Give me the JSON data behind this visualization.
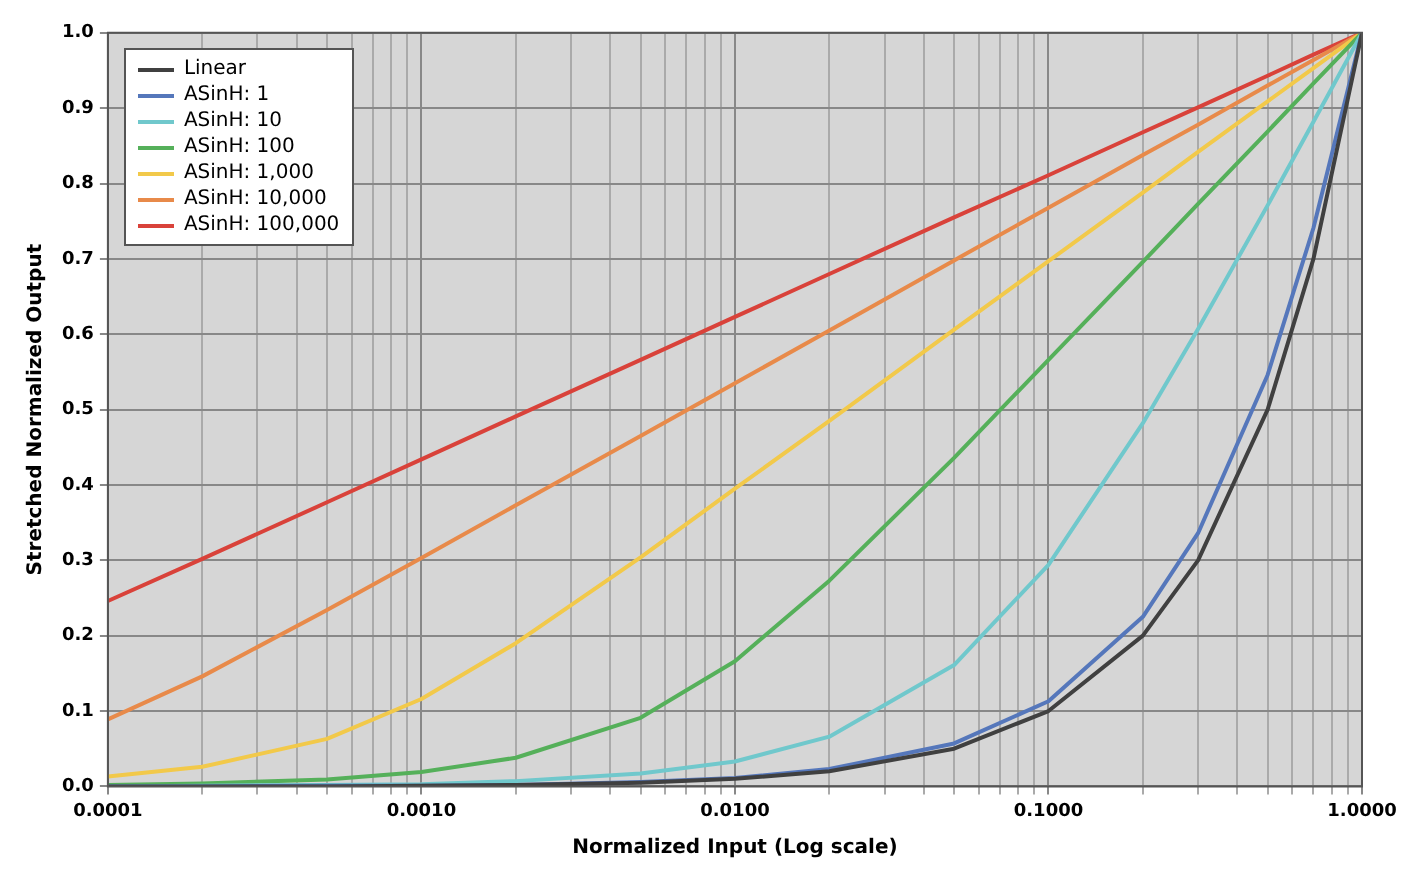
{
  "chart_data": {
    "type": "line",
    "xlabel": "Normalized Input (Log scale)",
    "ylabel": "Stretched Normalized Output",
    "log": "x",
    "grid": true,
    "legend": "top left",
    "marker": "none",
    "line_style": "solid",
    "x": [
      0.0001,
      0.0002,
      0.0005,
      0.001,
      0.002,
      0.005,
      0.01,
      0.02,
      0.05,
      0.1,
      0.2,
      0.3,
      0.5,
      0.7,
      1
    ],
    "xlim": [
      0.0001,
      1
    ],
    "ylim": [
      0,
      1
    ],
    "xticks": [
      {
        "value": 0.0001,
        "label": "0.0001"
      },
      {
        "value": 0.0002,
        "label": null
      },
      {
        "value": 0.0003,
        "label": null
      },
      {
        "value": 0.0004,
        "label": null
      },
      {
        "value": 0.0005,
        "label": null
      },
      {
        "value": 0.0006,
        "label": null
      },
      {
        "value": 0.0007,
        "label": null
      },
      {
        "value": 0.0008,
        "label": null
      },
      {
        "value": 0.0009,
        "label": null
      },
      {
        "value": 0.001,
        "label": "0.0010"
      },
      {
        "value": 0.002,
        "label": null
      },
      {
        "value": 0.003,
        "label": null
      },
      {
        "value": 0.004,
        "label": null
      },
      {
        "value": 0.005,
        "label": null
      },
      {
        "value": 0.006,
        "label": null
      },
      {
        "value": 0.007,
        "label": null
      },
      {
        "value": 0.008,
        "label": null
      },
      {
        "value": 0.009,
        "label": null
      },
      {
        "value": 0.01,
        "label": "0.0100"
      },
      {
        "value": 0.02,
        "label": null
      },
      {
        "value": 0.03,
        "label": null
      },
      {
        "value": 0.04,
        "label": null
      },
      {
        "value": 0.05,
        "label": null
      },
      {
        "value": 0.06,
        "label": null
      },
      {
        "value": 0.07,
        "label": null
      },
      {
        "value": 0.08,
        "label": null
      },
      {
        "value": 0.09,
        "label": null
      },
      {
        "value": 0.1,
        "label": "0.1000"
      },
      {
        "value": 0.2,
        "label": null
      },
      {
        "value": 0.3,
        "label": null
      },
      {
        "value": 0.4,
        "label": null
      },
      {
        "value": 0.5,
        "label": null
      },
      {
        "value": 0.6,
        "label": null
      },
      {
        "value": 0.7,
        "label": null
      },
      {
        "value": 0.8,
        "label": null
      },
      {
        "value": 0.9,
        "label": null
      },
      {
        "value": 1,
        "label": "1.0000"
      }
    ],
    "yticks": [
      {
        "value": 0,
        "label": "0.0"
      },
      {
        "value": 0.1,
        "label": "0.1"
      },
      {
        "value": 0.2,
        "label": "0.2"
      },
      {
        "value": 0.3,
        "label": "0.3"
      },
      {
        "value": 0.4,
        "label": "0.4"
      },
      {
        "value": 0.5,
        "label": "0.5"
      },
      {
        "value": 0.6,
        "label": "0.6"
      },
      {
        "value": 0.7,
        "label": "0.7"
      },
      {
        "value": 0.8,
        "label": "0.8"
      },
      {
        "value": 0.9,
        "label": "0.9"
      },
      {
        "value": 1,
        "label": "1.0"
      }
    ],
    "series": [
      {
        "name": "Linear",
        "color": "#404040",
        "values": [
          0,
          0,
          0,
          0.001,
          0.002,
          0.005,
          0.01,
          0.02,
          0.05,
          0.1,
          0.2,
          0.3,
          0.5,
          0.7,
          1
        ]
      },
      {
        "name": "ASinH: 1",
        "color": "#5577bb",
        "values": [
          0,
          0,
          0.001,
          0.001,
          0.002,
          0.006,
          0.011,
          0.023,
          0.057,
          0.113,
          0.225,
          0.336,
          0.546,
          0.741,
          1
        ]
      },
      {
        "name": "ASinH: 10",
        "color": "#70c8cc",
        "values": [
          0,
          0.001,
          0.002,
          0.003,
          0.007,
          0.017,
          0.033,
          0.066,
          0.161,
          0.294,
          0.482,
          0.607,
          0.771,
          0.882,
          1
        ]
      },
      {
        "name": "ASinH: 100",
        "color": "#55b05a",
        "values": [
          0.002,
          0.004,
          0.009,
          0.019,
          0.038,
          0.091,
          0.166,
          0.273,
          0.436,
          0.566,
          0.696,
          0.773,
          0.869,
          0.933,
          1
        ]
      },
      {
        "name": "ASinH: 1,000",
        "color": "#f2c94a",
        "values": [
          0.013,
          0.026,
          0.063,
          0.116,
          0.19,
          0.304,
          0.395,
          0.485,
          0.606,
          0.697,
          0.788,
          0.842,
          0.909,
          0.953,
          1
        ]
      },
      {
        "name": "ASinH: 10,000",
        "color": "#e88a4a",
        "values": [
          0.089,
          0.146,
          0.234,
          0.303,
          0.373,
          0.465,
          0.535,
          0.605,
          0.698,
          0.768,
          0.838,
          0.878,
          0.93,
          0.964,
          1
        ]
      },
      {
        "name": "ASinH: 100,000",
        "color": "#d9423a",
        "values": [
          0.246,
          0.302,
          0.377,
          0.434,
          0.491,
          0.566,
          0.623,
          0.68,
          0.755,
          0.811,
          0.868,
          0.901,
          0.943,
          0.971,
          1
        ]
      }
    ]
  }
}
